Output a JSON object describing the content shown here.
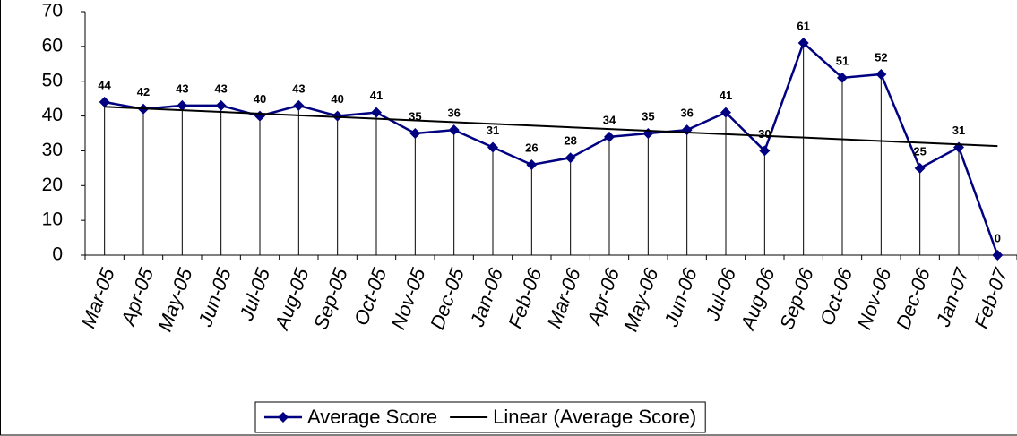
{
  "chart_data": {
    "type": "line",
    "categories": [
      "Mar-05",
      "Apr-05",
      "May-05",
      "Jun-05",
      "Jul-05",
      "Aug-05",
      "Sep-05",
      "Oct-05",
      "Nov-05",
      "Dec-05",
      "Jan-06",
      "Feb-06",
      "Mar-06",
      "Apr-06",
      "May-06",
      "Jun-06",
      "Jul-06",
      "Aug-06",
      "Sep-06",
      "Oct-06",
      "Nov-06",
      "Dec-06",
      "Jan-07",
      "Feb-07"
    ],
    "series": [
      {
        "name": "Average Score",
        "color": "#000080",
        "values": [
          44,
          42,
          43,
          43,
          40,
          43,
          40,
          41,
          35,
          36,
          31,
          26,
          28,
          34,
          35,
          36,
          41,
          30,
          61,
          51,
          52,
          25,
          31,
          0
        ]
      },
      {
        "name": "Linear (Average Score)",
        "color": "#000000",
        "trendline": "linear"
      }
    ],
    "ylim": [
      0,
      70
    ],
    "yticks": [
      0,
      10,
      20,
      30,
      40,
      50,
      60,
      70
    ],
    "drop_lines": true,
    "data_labels": true,
    "legend": "bottom"
  }
}
